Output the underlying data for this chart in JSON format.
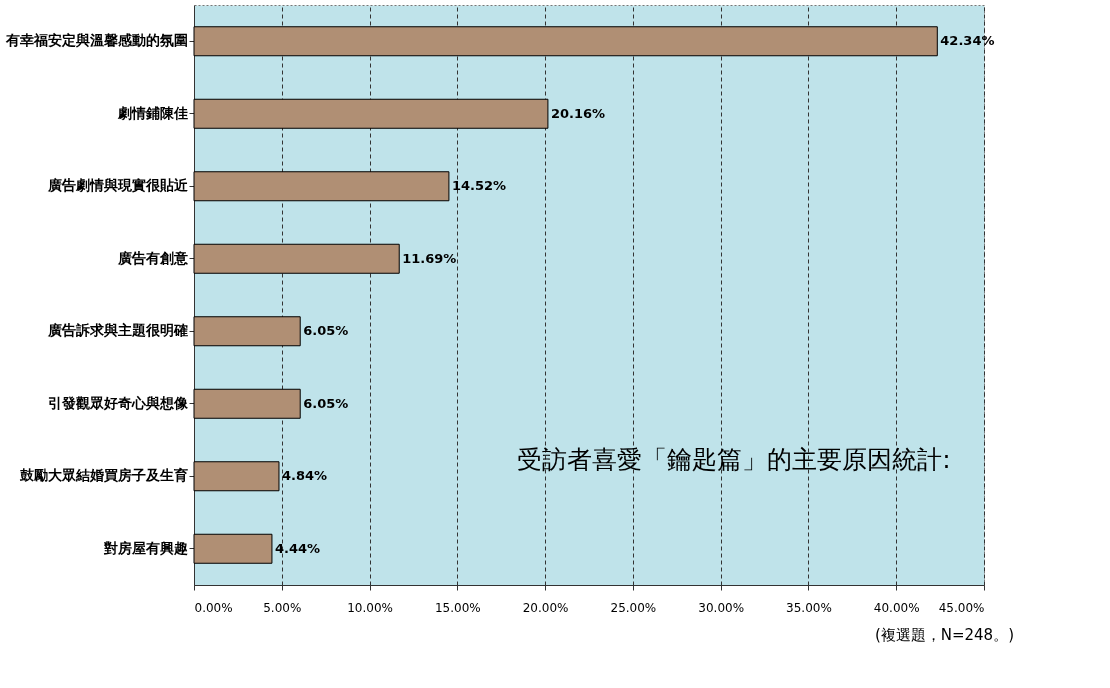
{
  "chart_data": {
    "type": "bar",
    "orientation": "horizontal",
    "title": "受訪者喜愛「鑰匙篇」的主要原因統計:",
    "categories": [
      "有幸福安定與溫馨感動的氛圍",
      "劇情鋪陳佳",
      "廣告劇情與現實很貼近",
      "廣告有創意",
      "廣告訴求與主題很明確",
      "引發觀眾好奇心與想像",
      "鼓勵大眾結婚買房子及生育",
      "對房屋有興趣"
    ],
    "values": [
      42.34,
      20.16,
      14.52,
      11.69,
      6.05,
      6.05,
      4.84,
      4.44
    ],
    "value_labels": [
      "42.34%",
      "20.16%",
      "14.52%",
      "11.69%",
      "6.05%",
      "6.05%",
      "4.84%",
      "4.44%"
    ],
    "color": "#b08f74",
    "xlim": [
      0,
      45
    ],
    "xticks": [
      {
        "value": 0,
        "label": "0.00%"
      },
      {
        "value": 5,
        "label": "5.00%"
      },
      {
        "value": 10,
        "label": "10.00%"
      },
      {
        "value": 15,
        "label": "15.00%"
      },
      {
        "value": 20,
        "label": "20.00%"
      },
      {
        "value": 25,
        "label": "25.00%"
      },
      {
        "value": 30,
        "label": "30.00%"
      },
      {
        "value": 35,
        "label": "35.00%"
      },
      {
        "value": 40,
        "label": "40.00%"
      },
      {
        "value": 45,
        "label": "45.00%"
      }
    ],
    "grid": "x",
    "annotations": [
      "(複選題，N=248。)"
    ]
  }
}
